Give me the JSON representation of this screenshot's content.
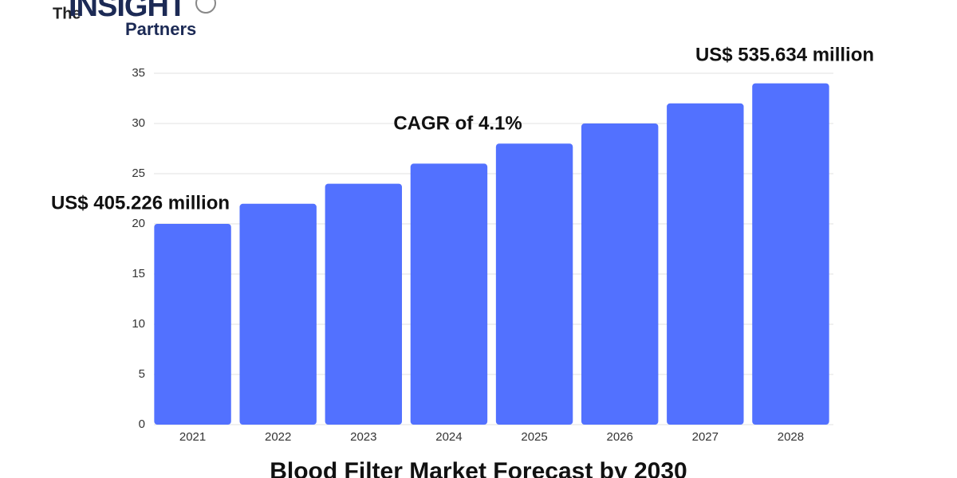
{
  "logo": {
    "top": "The",
    "main": "INSIGHT",
    "bottom": "Partners"
  },
  "chart_data": {
    "type": "bar",
    "title": "Blood Filter Market Forecast by 2030",
    "categories": [
      "2021",
      "2022",
      "2023",
      "2024",
      "2025",
      "2026",
      "2027",
      "2028"
    ],
    "values": [
      20,
      22,
      24,
      26,
      28,
      30,
      32,
      34
    ],
    "color": "#5271ff",
    "ylim": [
      0,
      35
    ],
    "yticks": [
      0,
      5,
      10,
      15,
      20,
      25,
      30,
      35
    ],
    "grid": true,
    "annotations": [
      "US$ 405.226 million",
      "CAGR of 4.1%",
      "US$ 535.634 million"
    ]
  }
}
